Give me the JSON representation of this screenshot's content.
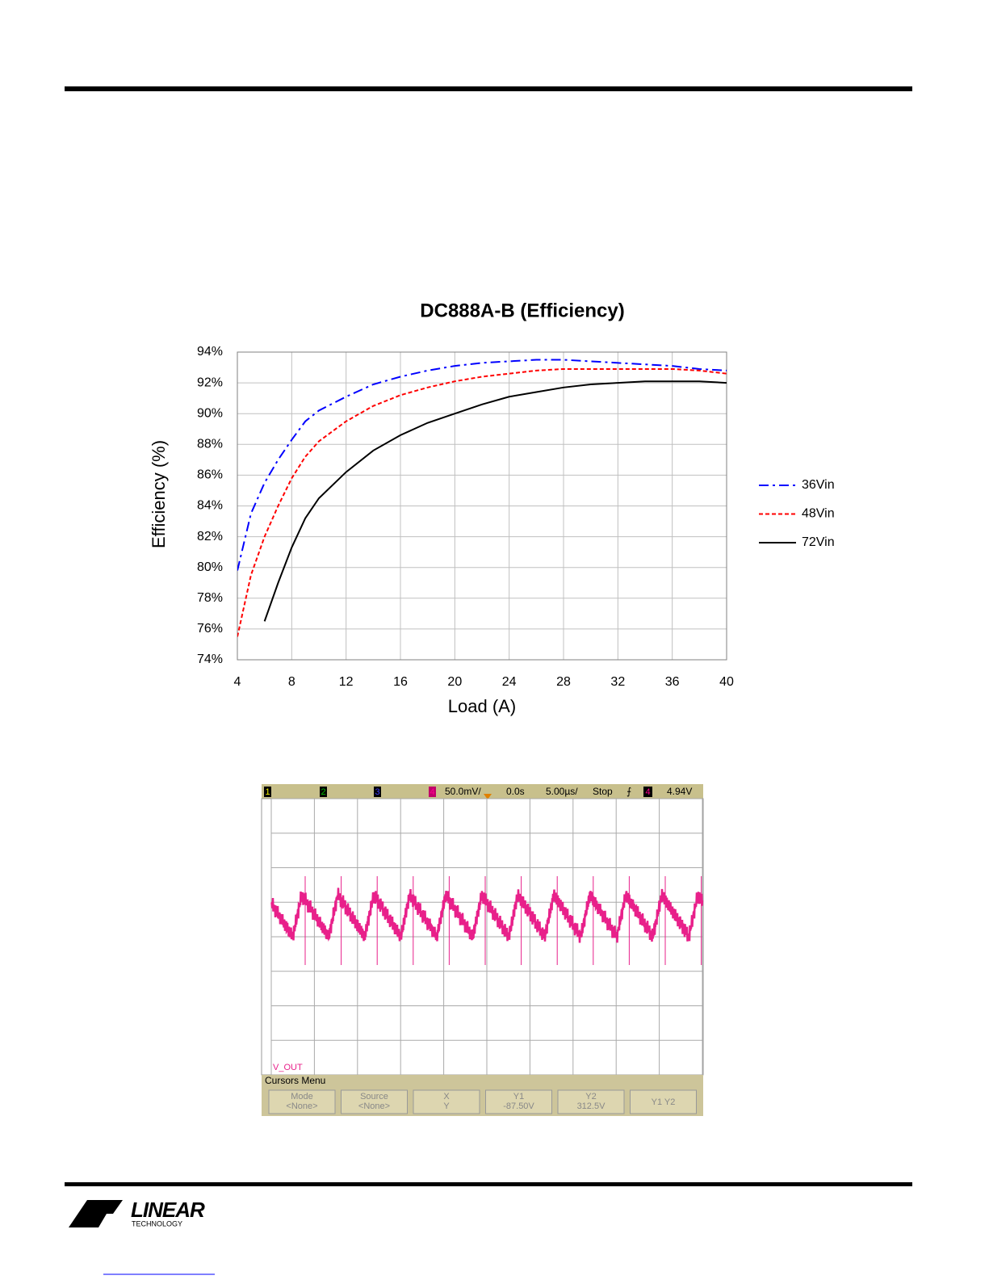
{
  "chart_data": {
    "type": "line",
    "title": "DC888A-B (Efficiency)",
    "x_label": "Load (A)",
    "y_label": "Efficiency (%)",
    "x": [
      4,
      5,
      6,
      7,
      8,
      9,
      10,
      12,
      14,
      16,
      18,
      20,
      22,
      24,
      26,
      28,
      30,
      32,
      34,
      36,
      38,
      40
    ],
    "series": [
      {
        "name": "36Vin",
        "color": "#0000ff",
        "style": "dash-dot",
        "values": [
          79.8,
          83.5,
          85.5,
          87,
          88.3,
          89.5,
          90.2,
          91.1,
          91.9,
          92.4,
          92.8,
          93.1,
          93.3,
          93.4,
          93.5,
          93.5,
          93.4,
          93.3,
          93.2,
          93.1,
          92.9,
          92.8
        ]
      },
      {
        "name": "48Vin",
        "color": "#ff0000",
        "style": "dashed",
        "values": [
          75.5,
          79.5,
          82,
          84,
          85.8,
          87.2,
          88.2,
          89.5,
          90.5,
          91.2,
          91.7,
          92.1,
          92.4,
          92.6,
          92.8,
          92.9,
          92.9,
          92.9,
          92.9,
          92.9,
          92.8,
          92.6
        ]
      },
      {
        "name": "72Vin",
        "color": "#000000",
        "style": "solid",
        "values": [
          null,
          null,
          76.5,
          79,
          81.3,
          83.2,
          84.5,
          86.2,
          87.6,
          88.6,
          89.4,
          90,
          90.6,
          91.1,
          91.4,
          91.7,
          91.9,
          92,
          92.1,
          92.1,
          92.1,
          92
        ]
      }
    ],
    "xlim": [
      4,
      40
    ],
    "xticks": [
      4,
      8,
      12,
      16,
      20,
      24,
      28,
      32,
      36,
      40
    ],
    "ylim": [
      74,
      94
    ],
    "yticks": [
      {
        "value": 74,
        "label": "74%"
      },
      {
        "value": 76,
        "label": "76%"
      },
      {
        "value": 78,
        "label": "78%"
      },
      {
        "value": 80,
        "label": "80%"
      },
      {
        "value": 82,
        "label": "82%"
      },
      {
        "value": 84,
        "label": "84%"
      },
      {
        "value": 86,
        "label": "86%"
      },
      {
        "value": 88,
        "label": "88%"
      },
      {
        "value": 90,
        "label": "90%"
      },
      {
        "value": 92,
        "label": "92%"
      },
      {
        "value": 94,
        "label": "94%"
      }
    ],
    "grid": true,
    "legend": "right"
  },
  "scope": {
    "channels": [
      "1",
      "2",
      "3",
      "4"
    ],
    "scale": "50.0mV/",
    "delay": "0.0s",
    "timebase": "5.00µs/",
    "status": "Stop",
    "trigger_channel": "4",
    "trigger_level": "4.94V",
    "trace_label": "V_OUT",
    "menu_title": "Cursors Menu",
    "buttons": [
      [
        "Mode",
        "<None>"
      ],
      [
        "Source",
        "<None>"
      ],
      [
        "X",
        "Y"
      ],
      [
        "Y1",
        "-87.50V"
      ],
      [
        "Y2",
        "312.5V"
      ],
      [
        "Y1 Y2"
      ]
    ]
  },
  "logo": {
    "name": "LINEAR",
    "sub": "TECHNOLOGY"
  }
}
